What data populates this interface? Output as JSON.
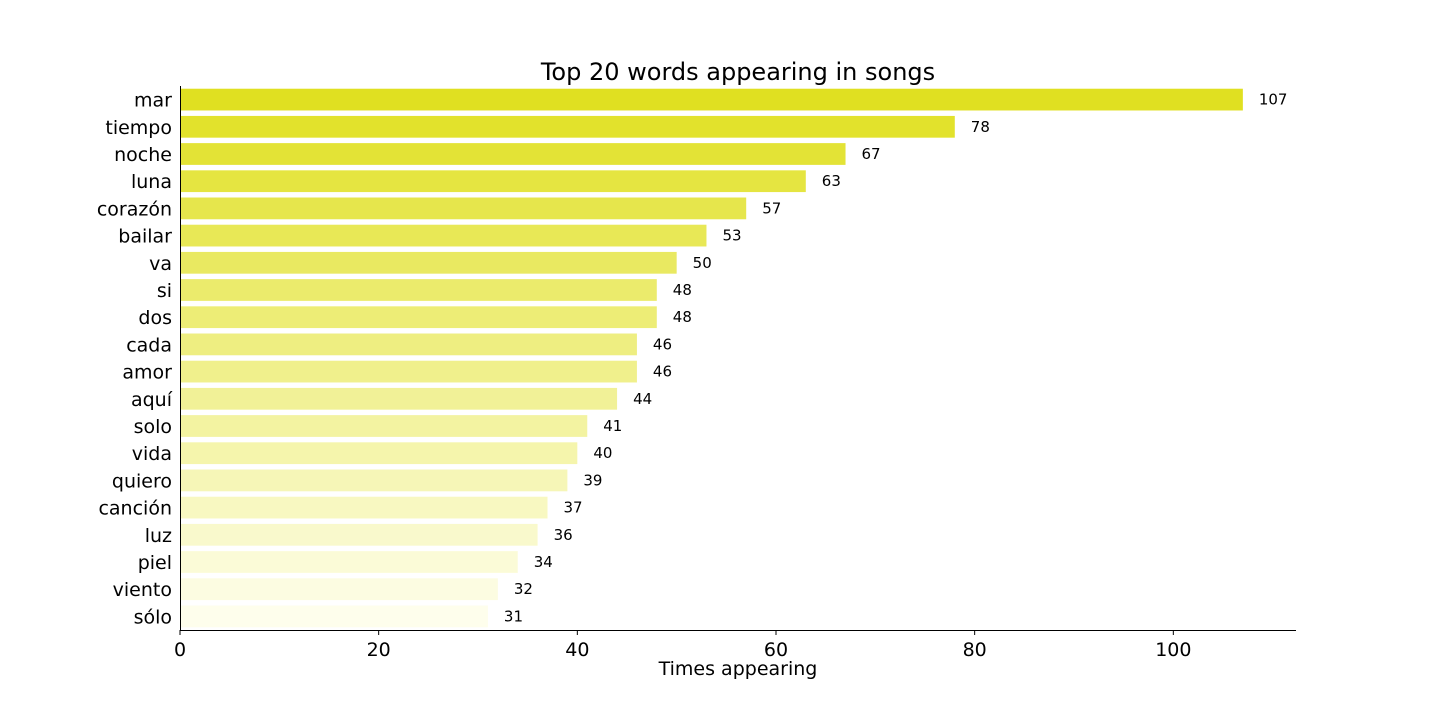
{
  "chart_data": {
    "type": "bar",
    "orientation": "horizontal",
    "title": "Top 20 words appearing in songs",
    "xlabel": "Times appearing",
    "ylabel": "",
    "xlim": [
      0,
      112.35
    ],
    "xticks": [
      0,
      20,
      40,
      60,
      80,
      100
    ],
    "grid": false,
    "legend": "none",
    "colors": {
      "bar_strong": "#e0e021",
      "bar_light": "#fefeec"
    },
    "categories": [
      "mar",
      "tiempo",
      "noche",
      "luna",
      "corazón",
      "bailar",
      "va",
      "si",
      "dos",
      "cada",
      "amor",
      "aquí",
      "solo",
      "vida",
      "quiero",
      "canción",
      "luz",
      "piel",
      "viento",
      "sólo"
    ],
    "values": [
      107,
      78,
      67,
      63,
      57,
      53,
      50,
      48,
      48,
      46,
      46,
      44,
      41,
      40,
      39,
      37,
      36,
      34,
      32,
      31
    ],
    "data_labels": [
      "107",
      "78",
      "67",
      "63",
      "57",
      "53",
      "50",
      "48",
      "48",
      "46",
      "46",
      "44",
      "41",
      "40",
      "39",
      "37",
      "36",
      "34",
      "32",
      "31"
    ]
  }
}
